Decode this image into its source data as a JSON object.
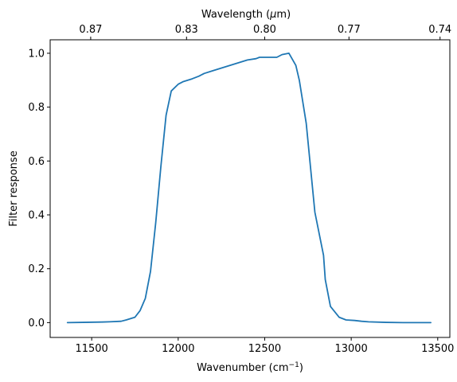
{
  "chart_data": {
    "type": "line",
    "xlabel_main": "Wavenumber (cm",
    "xlabel_sup": "−1",
    "xlabel_tail": ")",
    "ylabel": "Filter response",
    "top_xlabel_main": "Wavelength (",
    "top_xlabel_mu": "μ",
    "top_xlabel_tail": "m)",
    "xlim": [
      11260,
      13570
    ],
    "ylim": [
      -0.055,
      1.05
    ],
    "x_ticks": [
      11500,
      12000,
      12500,
      13000,
      13500
    ],
    "x_tick_labels": [
      "11500",
      "12000",
      "12500",
      "13000",
      "13500"
    ],
    "y_ticks": [
      0.0,
      0.2,
      0.4,
      0.6,
      0.8,
      1.0
    ],
    "y_tick_labels": [
      "0.0",
      "0.2",
      "0.4",
      "0.6",
      "0.8",
      "1.0"
    ],
    "top_ticks_wavelength_um": [
      0.87,
      0.83,
      0.8,
      0.77,
      0.74
    ],
    "top_tick_labels": [
      "0.87",
      "0.83",
      "0.80",
      "0.77",
      "0.74"
    ],
    "grid": false,
    "line_color": "#1f77b4",
    "series": [
      {
        "x": [
          11360,
          11450,
          11550,
          11600,
          11670,
          11700,
          11750,
          11780,
          11810,
          11840,
          11870,
          11900,
          11930,
          11960,
          12000,
          12030,
          12080,
          12120,
          12150,
          12200,
          12250,
          12300,
          12350,
          12400,
          12450,
          12470,
          12520,
          12570,
          12600,
          12640,
          12680,
          12700,
          12740,
          12790,
          12840,
          12850,
          12880,
          12930,
          12970,
          13020,
          13060,
          13100,
          13200,
          13300,
          13460
        ],
        "y": [
          0.0,
          0.001,
          0.002,
          0.003,
          0.005,
          0.01,
          0.02,
          0.045,
          0.09,
          0.19,
          0.37,
          0.58,
          0.77,
          0.86,
          0.885,
          0.895,
          0.905,
          0.915,
          0.925,
          0.935,
          0.945,
          0.955,
          0.965,
          0.975,
          0.98,
          0.985,
          0.985,
          0.985,
          0.995,
          1.0,
          0.955,
          0.9,
          0.74,
          0.41,
          0.25,
          0.16,
          0.06,
          0.02,
          0.01,
          0.008,
          0.005,
          0.003,
          0.001,
          0.0,
          0.0
        ]
      }
    ]
  }
}
